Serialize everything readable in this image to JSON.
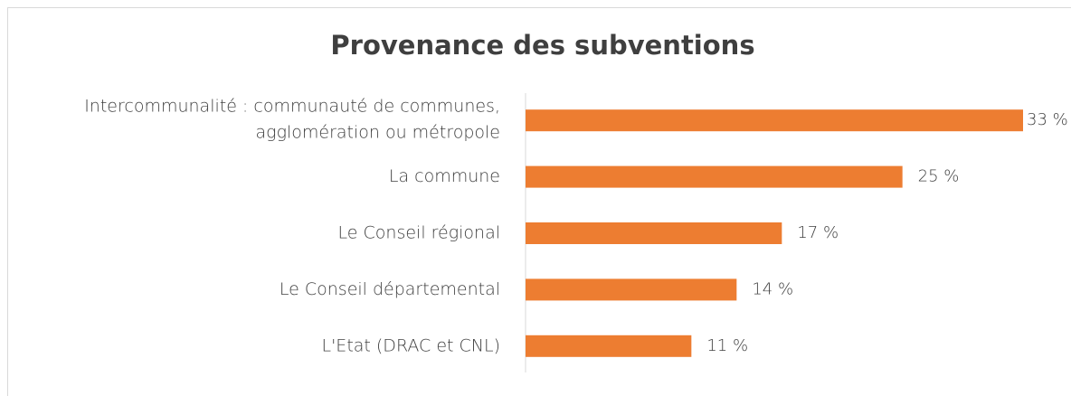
{
  "chart_data": {
    "type": "hbar",
    "title": "Provenance des subventions",
    "categories": [
      [
        "Intercommunalité : communauté de communes,",
        "agglomération ou métropole"
      ],
      "La commune",
      "Le Conseil régional",
      "Le Conseil départemental",
      "L'Etat (DRAC et CNL)"
    ],
    "values": [
      33,
      25,
      17,
      14,
      11
    ],
    "value_labels": [
      "33 %",
      "25 %",
      "17 %",
      "14 %",
      "11 %"
    ],
    "color": "#ed7d31",
    "xlim": [
      0,
      33
    ]
  }
}
